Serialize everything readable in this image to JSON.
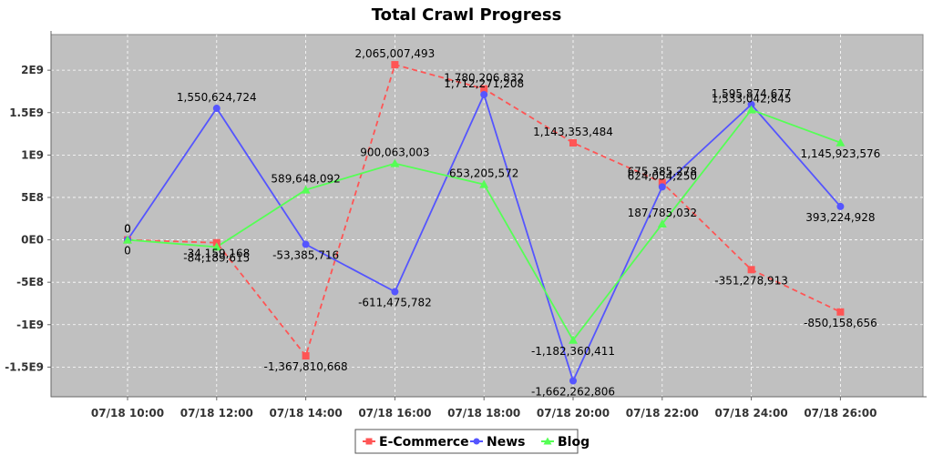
{
  "chart_data": {
    "type": "line",
    "title": "Total Crawl Progress",
    "xlabel": "",
    "ylabel": "",
    "categories": [
      "07/18 10:00",
      "07/18 12:00",
      "07/18 14:00",
      "07/18 16:00",
      "07/18 18:00",
      "07/18 20:00",
      "07/18 22:00",
      "07/18 24:00",
      "07/18 26:00"
    ],
    "y_ticks": [
      {
        "value": 2000000000,
        "label": "2E9"
      },
      {
        "value": 1500000000,
        "label": "1.5E9"
      },
      {
        "value": 1000000000,
        "label": "1E9"
      },
      {
        "value": 500000000,
        "label": "5E8"
      },
      {
        "value": 0,
        "label": "0E0"
      },
      {
        "value": -500000000,
        "label": "-5E8"
      },
      {
        "value": -1000000000,
        "label": "-1E9"
      },
      {
        "value": -1500000000,
        "label": "-1.5E9"
      }
    ],
    "ylim": [
      -1850000000,
      2420000000
    ],
    "grid": true,
    "legend_position": "bottom",
    "series": [
      {
        "name": "E-Commerce",
        "color": "#ff5555",
        "marker": "square",
        "dashed": true,
        "values": [
          0,
          -34159168,
          -1367810668,
          2065007493,
          1780206832,
          1143353484,
          675385278,
          -351278913,
          -850158656
        ],
        "labels": [
          "0",
          "-34,159,168",
          "-1,367,810,668",
          "2,065,007,493",
          "1,780,206,832",
          "1,143,353,484",
          "675,385,278",
          "-351,278,913",
          "-850,158,656"
        ]
      },
      {
        "name": "News",
        "color": "#5555ff",
        "marker": "circle",
        "dashed": false,
        "values": [
          0,
          1550624724,
          -53385716,
          -611475782,
          1712271208,
          -1662262806,
          624054250,
          1595874677,
          393224928
        ],
        "labels": [
          "0",
          "1,550,624,724",
          "-53,385,716",
          "-611,475,782",
          "1,712,271,208",
          "-1,662,262,806",
          "624,054,250",
          "1,595,874,677",
          "393,224,928"
        ]
      },
      {
        "name": "Blog",
        "color": "#55ff55",
        "marker": "triangle",
        "dashed": false,
        "values": [
          0,
          -84189615,
          589648092,
          900063003,
          653205572,
          -1182360411,
          187785032,
          1533042845,
          1145923576
        ],
        "labels": [
          "0",
          "-84,189,615",
          "589,648,092",
          "900,063,003",
          "653,205,572",
          "-1,182,360,411",
          "187,785,032",
          "1,533,042,845",
          "1,145,923,576"
        ]
      }
    ]
  }
}
